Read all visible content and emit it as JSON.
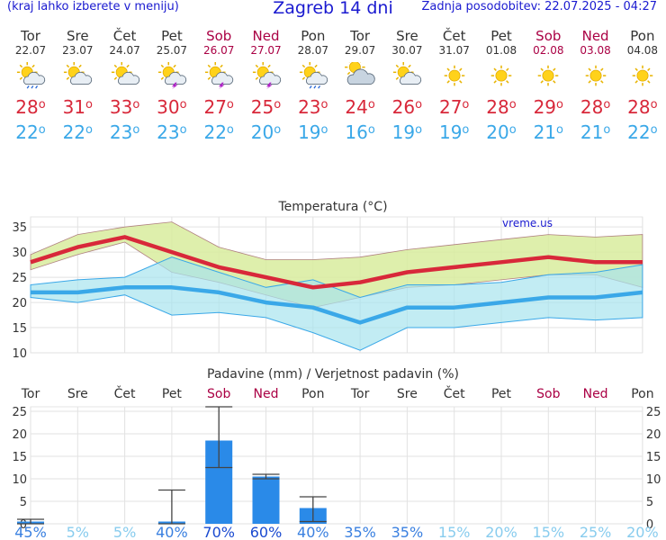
{
  "header": {
    "left_text": "(kraj lahko izberete v meniju)",
    "title": "Zagreb 14 dni",
    "updated": "Zadnja posodobitev: 22.07.2025 - 04:27"
  },
  "days": [
    {
      "name": "Tor",
      "date": "22.07",
      "weekend": false,
      "icon": "sun-cloud-rain-icon",
      "tmax": "28",
      "tmin": "22"
    },
    {
      "name": "Sre",
      "date": "23.07",
      "weekend": false,
      "icon": "sun-cloud-icon",
      "tmax": "31",
      "tmin": "22"
    },
    {
      "name": "Čet",
      "date": "24.07",
      "weekend": false,
      "icon": "sun-cloud-icon",
      "tmax": "33",
      "tmin": "23"
    },
    {
      "name": "Pet",
      "date": "25.07",
      "weekend": false,
      "icon": "sun-cloud-thunder-icon",
      "tmax": "30",
      "tmin": "23"
    },
    {
      "name": "Sob",
      "date": "26.07",
      "weekend": true,
      "icon": "sun-cloud-thunder-icon",
      "tmax": "27",
      "tmin": "22"
    },
    {
      "name": "Ned",
      "date": "27.07",
      "weekend": true,
      "icon": "sun-cloud-thunder-icon",
      "tmax": "25",
      "tmin": "20"
    },
    {
      "name": "Pon",
      "date": "28.07",
      "weekend": false,
      "icon": "sun-cloud-rain-icon",
      "tmax": "23",
      "tmin": "19"
    },
    {
      "name": "Tor",
      "date": "29.07",
      "weekend": false,
      "icon": "cloudy-icon",
      "tmax": "24",
      "tmin": "16"
    },
    {
      "name": "Sre",
      "date": "30.07",
      "weekend": false,
      "icon": "sun-cloud-icon",
      "tmax": "26",
      "tmin": "19"
    },
    {
      "name": "Čet",
      "date": "31.07",
      "weekend": false,
      "icon": "sun-icon",
      "tmax": "27",
      "tmin": "19"
    },
    {
      "name": "Pet",
      "date": "01.08",
      "weekend": false,
      "icon": "sun-icon",
      "tmax": "28",
      "tmin": "20"
    },
    {
      "name": "Sob",
      "date": "02.08",
      "weekend": true,
      "icon": "sun-icon",
      "tmax": "29",
      "tmin": "21"
    },
    {
      "name": "Ned",
      "date": "03.08",
      "weekend": true,
      "icon": "sun-icon",
      "tmax": "28",
      "tmin": "21"
    },
    {
      "name": "Pon",
      "date": "04.08",
      "weekend": false,
      "icon": "sun-icon",
      "tmax": "28",
      "tmin": "22"
    }
  ],
  "colors": {
    "max": "#d8283a",
    "min": "#3aa8e8",
    "weekend": "#aa0044",
    "max_band": "#d8ec9e",
    "min_band": "#a8e4ee",
    "overlap_band": "#8cd48c",
    "precip_bar": "#2a8ae8"
  },
  "chart_data": [
    {
      "type": "line",
      "title": "Temperatura (°C)",
      "watermark": "vreme.us",
      "x": [
        "Tor",
        "Sre",
        "Čet",
        "Pet",
        "Sob",
        "Ned",
        "Pon",
        "Tor",
        "Sre",
        "Čet",
        "Pet",
        "Sob",
        "Ned",
        "Pon"
      ],
      "ylim": [
        10,
        37
      ],
      "yticks": [
        10,
        15,
        20,
        25,
        30,
        35
      ],
      "grid": true,
      "series": [
        {
          "role": "max",
          "values": [
            28,
            31,
            33,
            30,
            27,
            25,
            23,
            24,
            26,
            27,
            28,
            29,
            28,
            28
          ]
        },
        {
          "role": "min",
          "values": [
            22,
            22,
            23,
            23,
            22,
            20,
            19,
            16,
            19,
            19,
            20,
            21,
            21,
            22
          ]
        }
      ],
      "max_range": {
        "upper": [
          29.5,
          33.5,
          35,
          36,
          31,
          28.5,
          28.5,
          29,
          30.5,
          31.5,
          32.5,
          33.5,
          33,
          33.5
        ],
        "lower": [
          26.5,
          29.5,
          32,
          26,
          24,
          21.5,
          19,
          21,
          23,
          23.5,
          24.5,
          25.5,
          25.5,
          23
        ]
      },
      "min_range": {
        "upper": [
          23.5,
          24.5,
          25,
          29,
          26,
          23,
          24.5,
          21,
          23.5,
          23.5,
          24,
          25.5,
          26,
          27.5
        ],
        "lower": [
          21,
          20,
          21.5,
          17.5,
          18,
          17,
          14,
          10.5,
          15,
          15,
          16,
          17,
          16.5,
          17
        ]
      }
    },
    {
      "type": "bar",
      "title": "Padavine (mm) / Verjetnost padavin (%)",
      "x": [
        "Tor",
        "Sre",
        "Čet",
        "Pet",
        "Sob",
        "Ned",
        "Pon",
        "Tor",
        "Sre",
        "Čet",
        "Pet",
        "Sob",
        "Ned",
        "Pon"
      ],
      "values": [
        0.5,
        0,
        0,
        0.5,
        18.5,
        10.5,
        3.5,
        0,
        0,
        0,
        0,
        0,
        0,
        0
      ],
      "range_low": [
        0,
        0,
        0,
        0,
        12.5,
        10,
        0.5,
        0,
        0,
        0,
        0,
        0,
        0,
        0
      ],
      "range_high": [
        1,
        0,
        0,
        7.5,
        26,
        11,
        6,
        0,
        0,
        0,
        0,
        0,
        0,
        0
      ],
      "probability": [
        "45%",
        "5%",
        "5%",
        "40%",
        "70%",
        "60%",
        "40%",
        "35%",
        "35%",
        "15%",
        "20%",
        "15%",
        "25%",
        "20%"
      ],
      "ylim": [
        0,
        26
      ],
      "yticks": [
        0,
        5,
        10,
        15,
        20,
        25
      ],
      "grid": true
    }
  ]
}
